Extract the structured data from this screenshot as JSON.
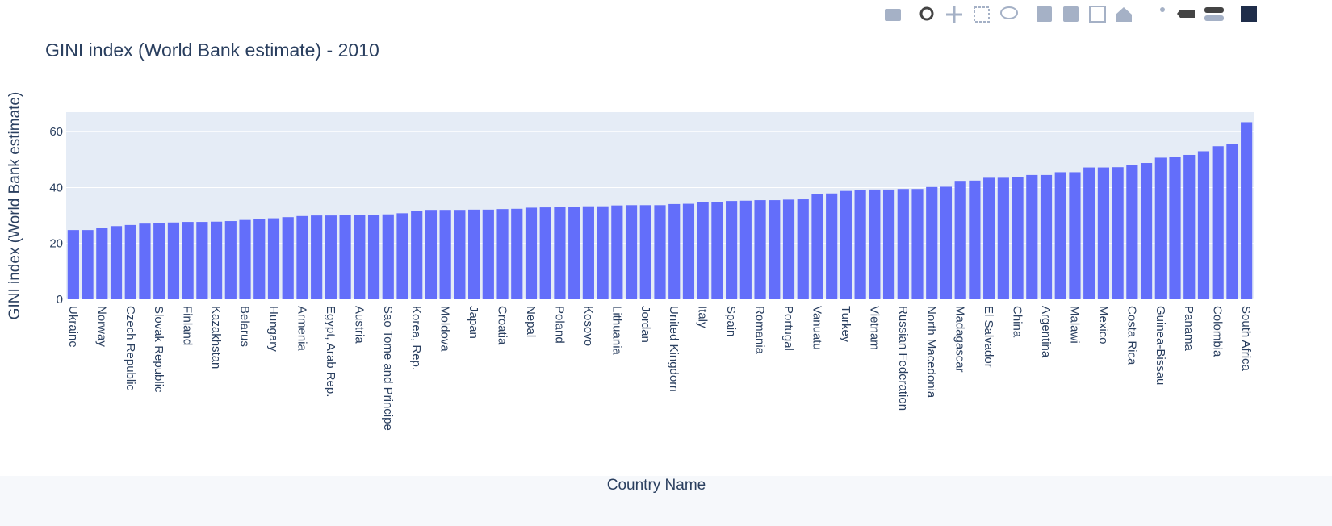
{
  "chart_data": {
    "type": "bar",
    "title": "GINI index (World Bank estimate) - 2010",
    "x_label": "Country Name",
    "y_label": "GINI index (World Bank estimate)",
    "categories": [
      "Ukraine",
      null,
      "Norway",
      null,
      "Czech Republic",
      null,
      "Slovak Republic",
      null,
      "Finland",
      null,
      "Kazakhstan",
      null,
      "Belarus",
      null,
      "Hungary",
      null,
      "Armenia",
      null,
      "Egypt, Arab Rep.",
      null,
      "Austria",
      null,
      "Sao Tome and Principe",
      null,
      "Korea, Rep.",
      null,
      "Moldova",
      null,
      "Japan",
      null,
      "Croatia",
      null,
      "Nepal",
      null,
      "Poland",
      null,
      "Kosovo",
      null,
      "Lithuania",
      null,
      "Jordan",
      null,
      "United Kingdom",
      null,
      "Italy",
      null,
      "Spain",
      null,
      "Romania",
      null,
      "Portugal",
      null,
      "Vanuatu",
      null,
      "Turkey",
      null,
      "Vietnam",
      null,
      "Russian Federation",
      null,
      "North Macedonia",
      null,
      "Madagascar",
      null,
      "El Salvador",
      null,
      "China",
      null,
      "Argentina",
      null,
      "Malawi",
      null,
      "Mexico",
      null,
      "Costa Rica",
      null,
      "Guinea-Bissau",
      null,
      "Panama",
      null,
      "Colombia",
      null,
      "South Africa"
    ],
    "values": [
      24.8,
      24.8,
      25.7,
      26.2,
      26.6,
      27.1,
      27.3,
      27.5,
      27.7,
      27.7,
      27.8,
      28.0,
      28.4,
      28.6,
      29.0,
      29.4,
      29.8,
      30.0,
      30.0,
      30.1,
      30.3,
      30.3,
      30.4,
      30.8,
      31.5,
      32.0,
      32.0,
      32.0,
      32.1,
      32.1,
      32.3,
      32.4,
      32.8,
      32.9,
      33.2,
      33.2,
      33.3,
      33.3,
      33.6,
      33.7,
      33.7,
      33.7,
      34.1,
      34.2,
      34.7,
      34.8,
      35.2,
      35.3,
      35.5,
      35.5,
      35.7,
      35.8,
      37.6,
      37.9,
      38.8,
      39.0,
      39.3,
      39.3,
      39.5,
      39.5,
      40.2,
      40.3,
      42.4,
      42.5,
      43.5,
      43.5,
      43.7,
      44.5,
      44.5,
      45.5,
      45.5,
      47.2,
      47.2,
      47.3,
      48.2,
      48.8,
      50.7,
      51.0,
      51.7,
      53.0,
      54.8,
      55.5,
      63.4
    ],
    "color": "#636efa",
    "ylim": [
      0,
      67
    ],
    "yticks": [
      0,
      20,
      40,
      60
    ],
    "grid": true
  }
}
